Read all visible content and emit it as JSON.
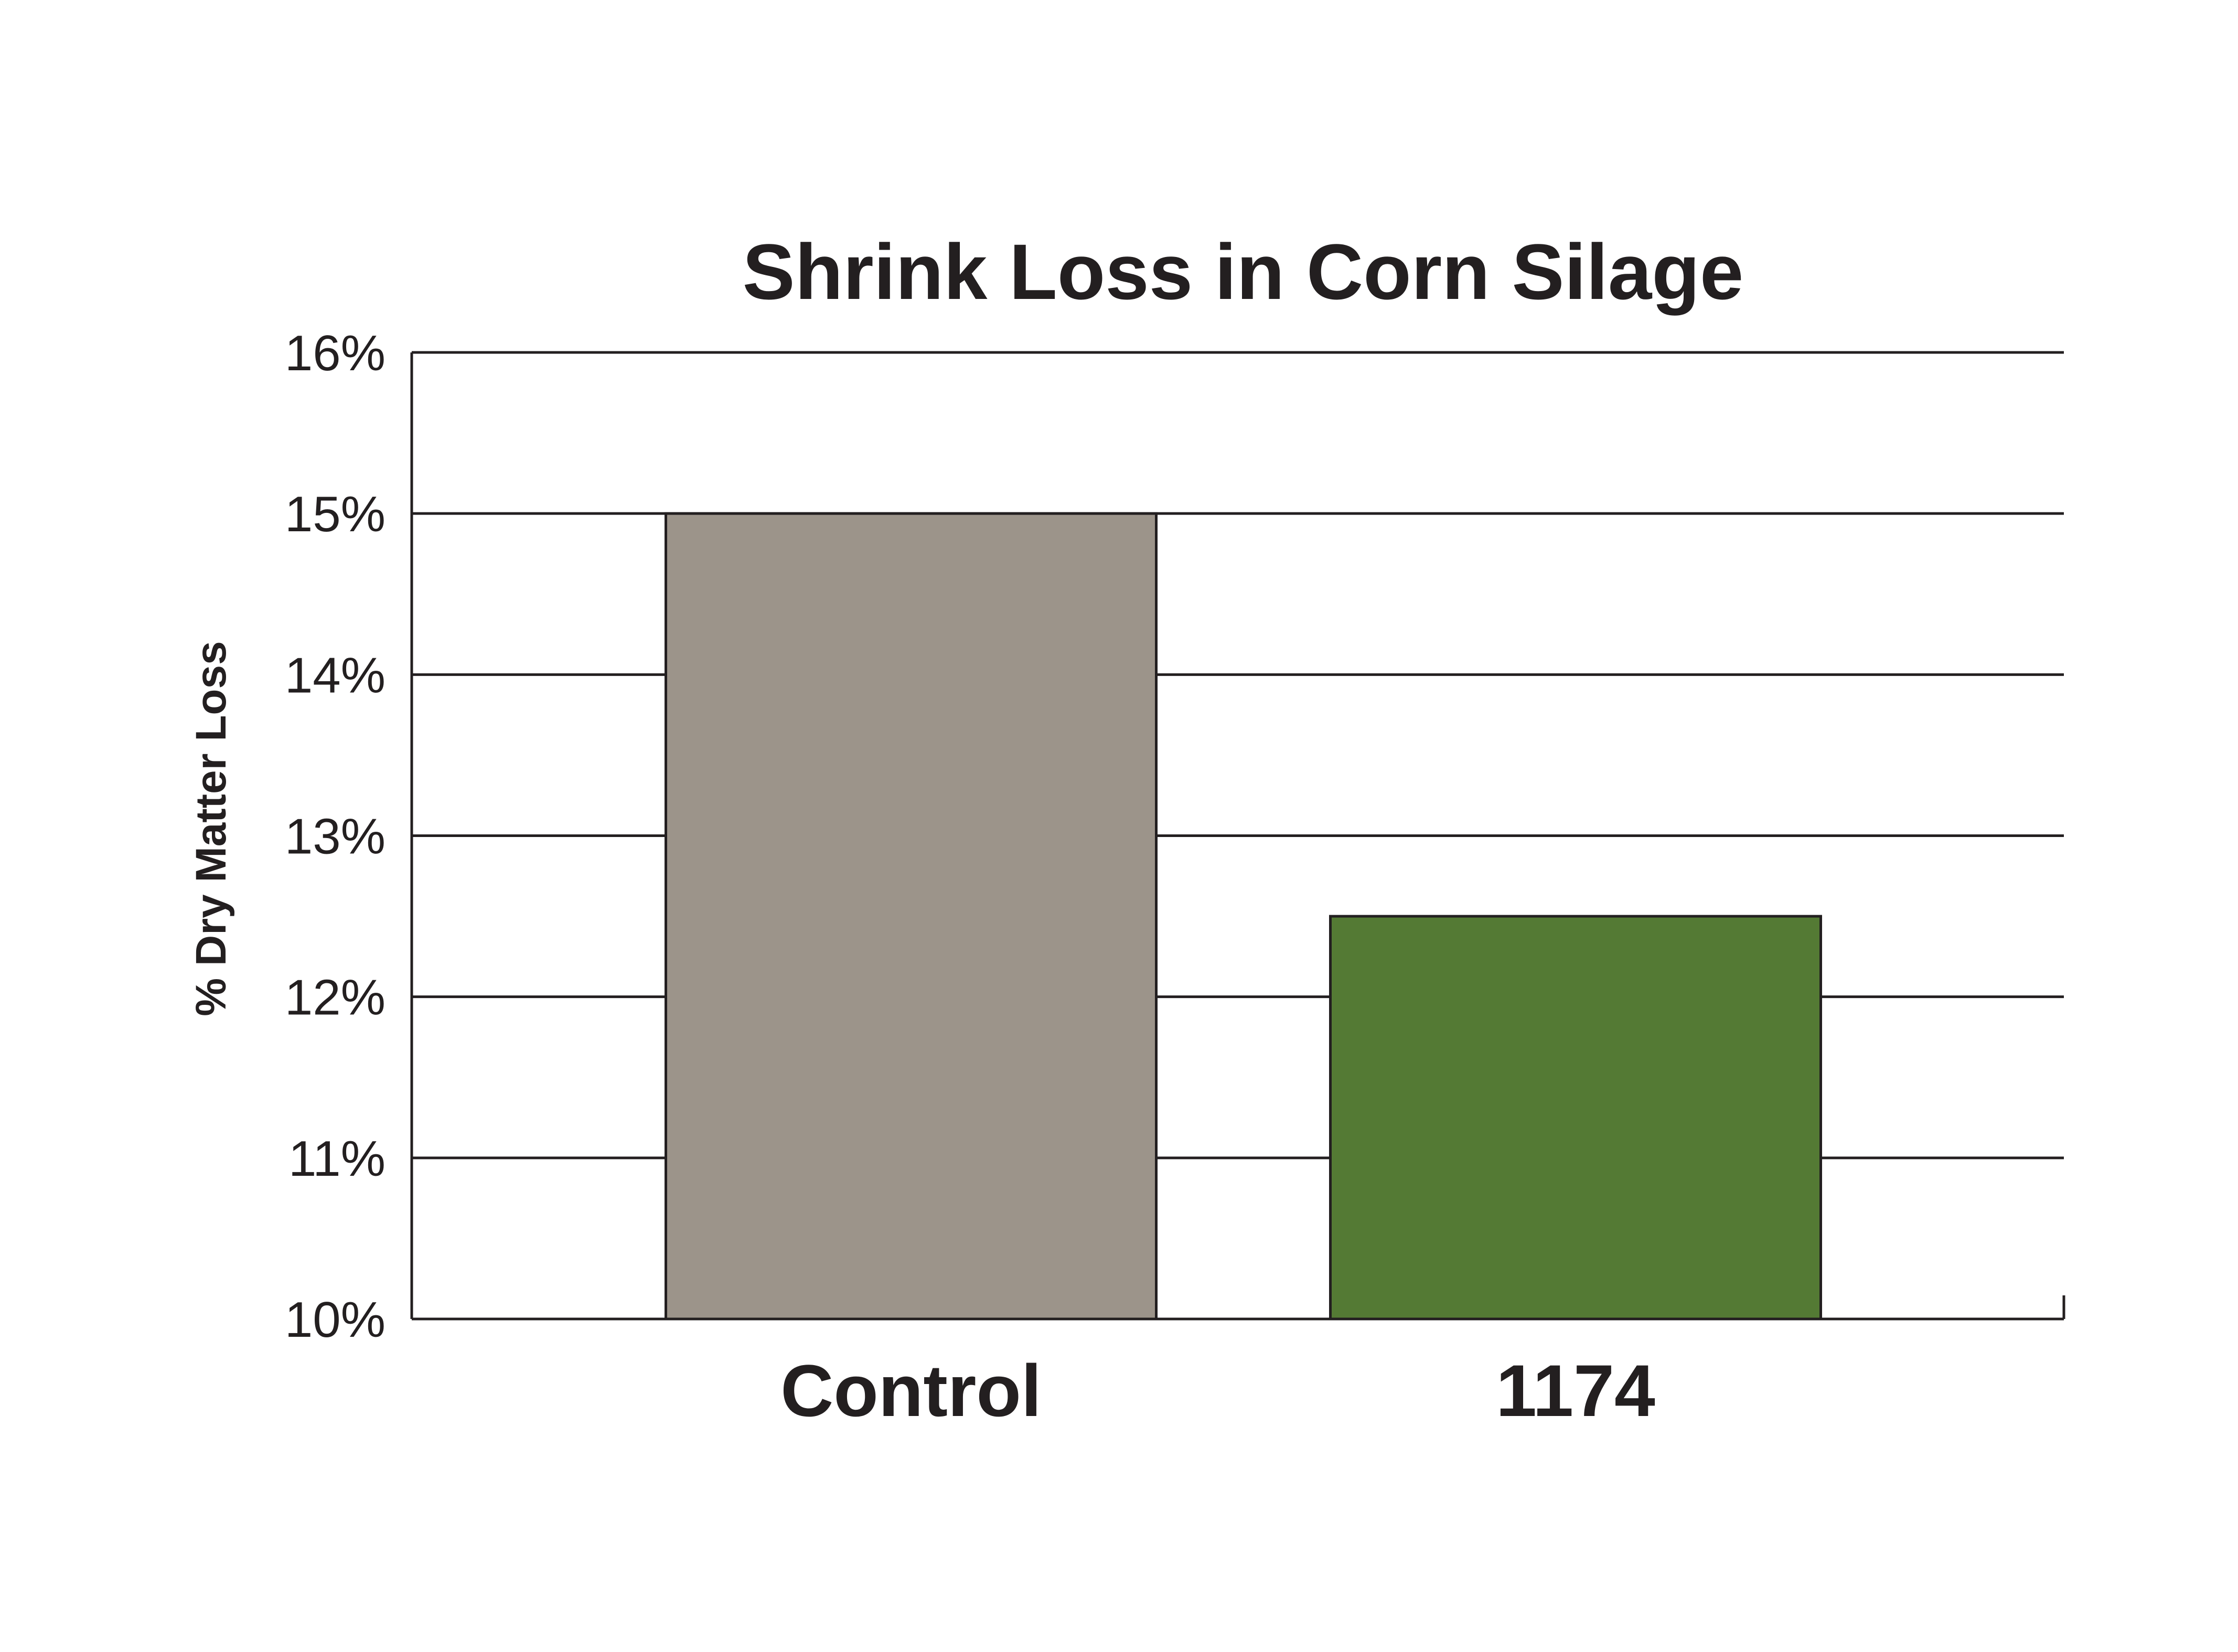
{
  "chart_data": {
    "type": "bar",
    "title": "Shrink Loss in Corn Silage",
    "ylabel": "% Dry Matter Loss",
    "xlabel": "",
    "categories": [
      "Control",
      "1174"
    ],
    "values": [
      15.0,
      12.5
    ],
    "bar_colors": [
      "#9c948a",
      "#547a34"
    ],
    "ylim": [
      10,
      16
    ],
    "yticks": [
      10,
      11,
      12,
      13,
      14,
      15,
      16
    ],
    "ytick_labels": [
      "10%",
      "11%",
      "12%",
      "13%",
      "14%",
      "15%",
      "16%"
    ],
    "grid": true,
    "legend": "none"
  }
}
